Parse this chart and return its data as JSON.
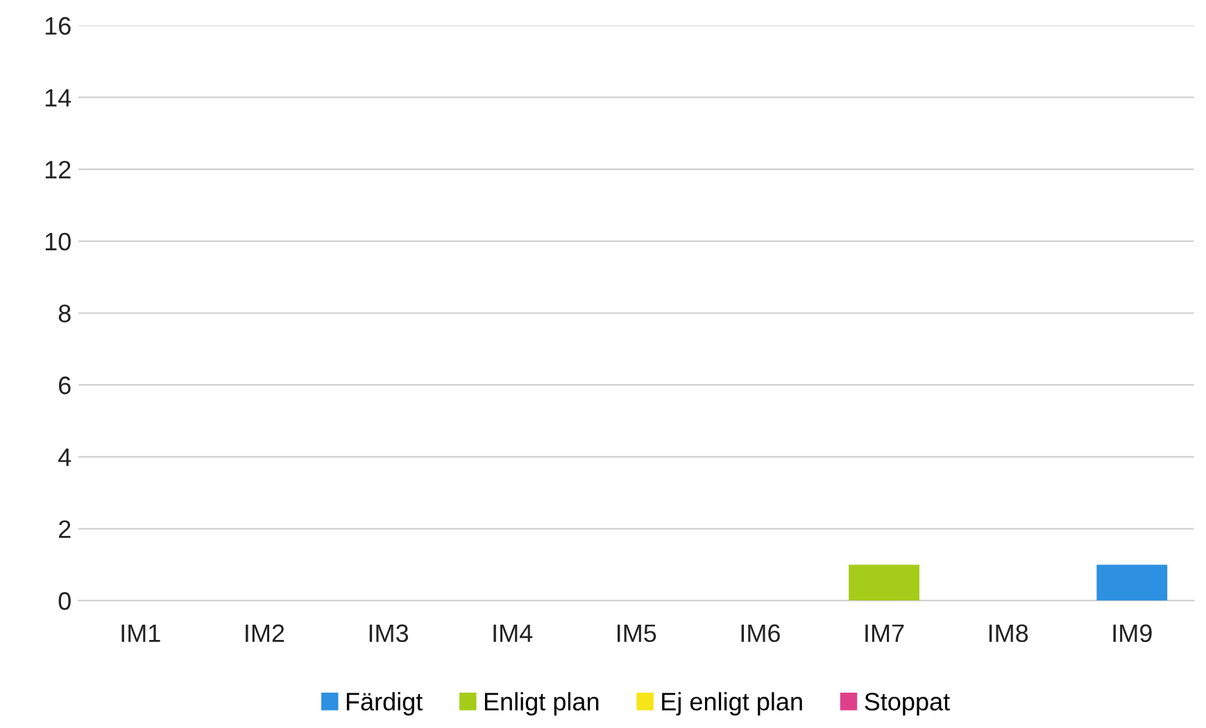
{
  "chart_data": {
    "type": "bar",
    "stacked": true,
    "categories": [
      "IM1",
      "IM2",
      "IM3",
      "IM4",
      "IM5",
      "IM6",
      "IM7",
      "IM8",
      "IM9"
    ],
    "series": [
      {
        "name": "Färdigt",
        "color": "#2e90e0",
        "values": [
          0,
          0,
          0,
          0,
          0,
          0,
          0,
          0,
          1
        ]
      },
      {
        "name": "Enligt plan",
        "color": "#a6cc1a",
        "values": [
          0,
          0,
          0,
          0,
          0,
          0,
          1,
          0,
          0
        ]
      },
      {
        "name": "Ej enligt plan",
        "color": "#f5e61a",
        "values": [
          0,
          0,
          0,
          0,
          0,
          0,
          0,
          0,
          0
        ]
      },
      {
        "name": "Stoppat",
        "color": "#e0408a",
        "values": [
          0,
          0,
          0,
          0,
          0,
          0,
          0,
          0,
          0
        ]
      }
    ],
    "ylim": [
      0,
      16
    ],
    "yticks": [
      0,
      2,
      4,
      6,
      8,
      10,
      12,
      14,
      16
    ],
    "grid": "y",
    "legend": "bottom"
  }
}
